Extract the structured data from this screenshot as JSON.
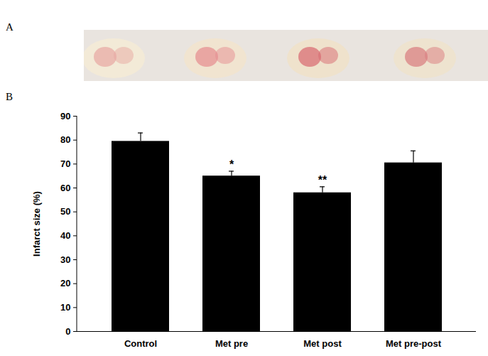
{
  "panel_labels": [
    "A",
    "B"
  ],
  "chart_data": {
    "type": "bar",
    "categories": [
      "Control",
      "Met pre",
      "Met post",
      "Met pre-post"
    ],
    "values": [
      79.5,
      65,
      58,
      70.5
    ],
    "errors": [
      3.5,
      2,
      2.5,
      5
    ],
    "color": "#000000",
    "ylabel": "Infarct size (%)",
    "ylim": [
      0,
      90
    ],
    "yticks": [
      0,
      10,
      20,
      30,
      40,
      50,
      60,
      70,
      80,
      90
    ],
    "grid": false,
    "annotations": [
      {
        "category": "Met pre",
        "text": "*"
      },
      {
        "category": "Met post",
        "text": "**"
      }
    ]
  }
}
